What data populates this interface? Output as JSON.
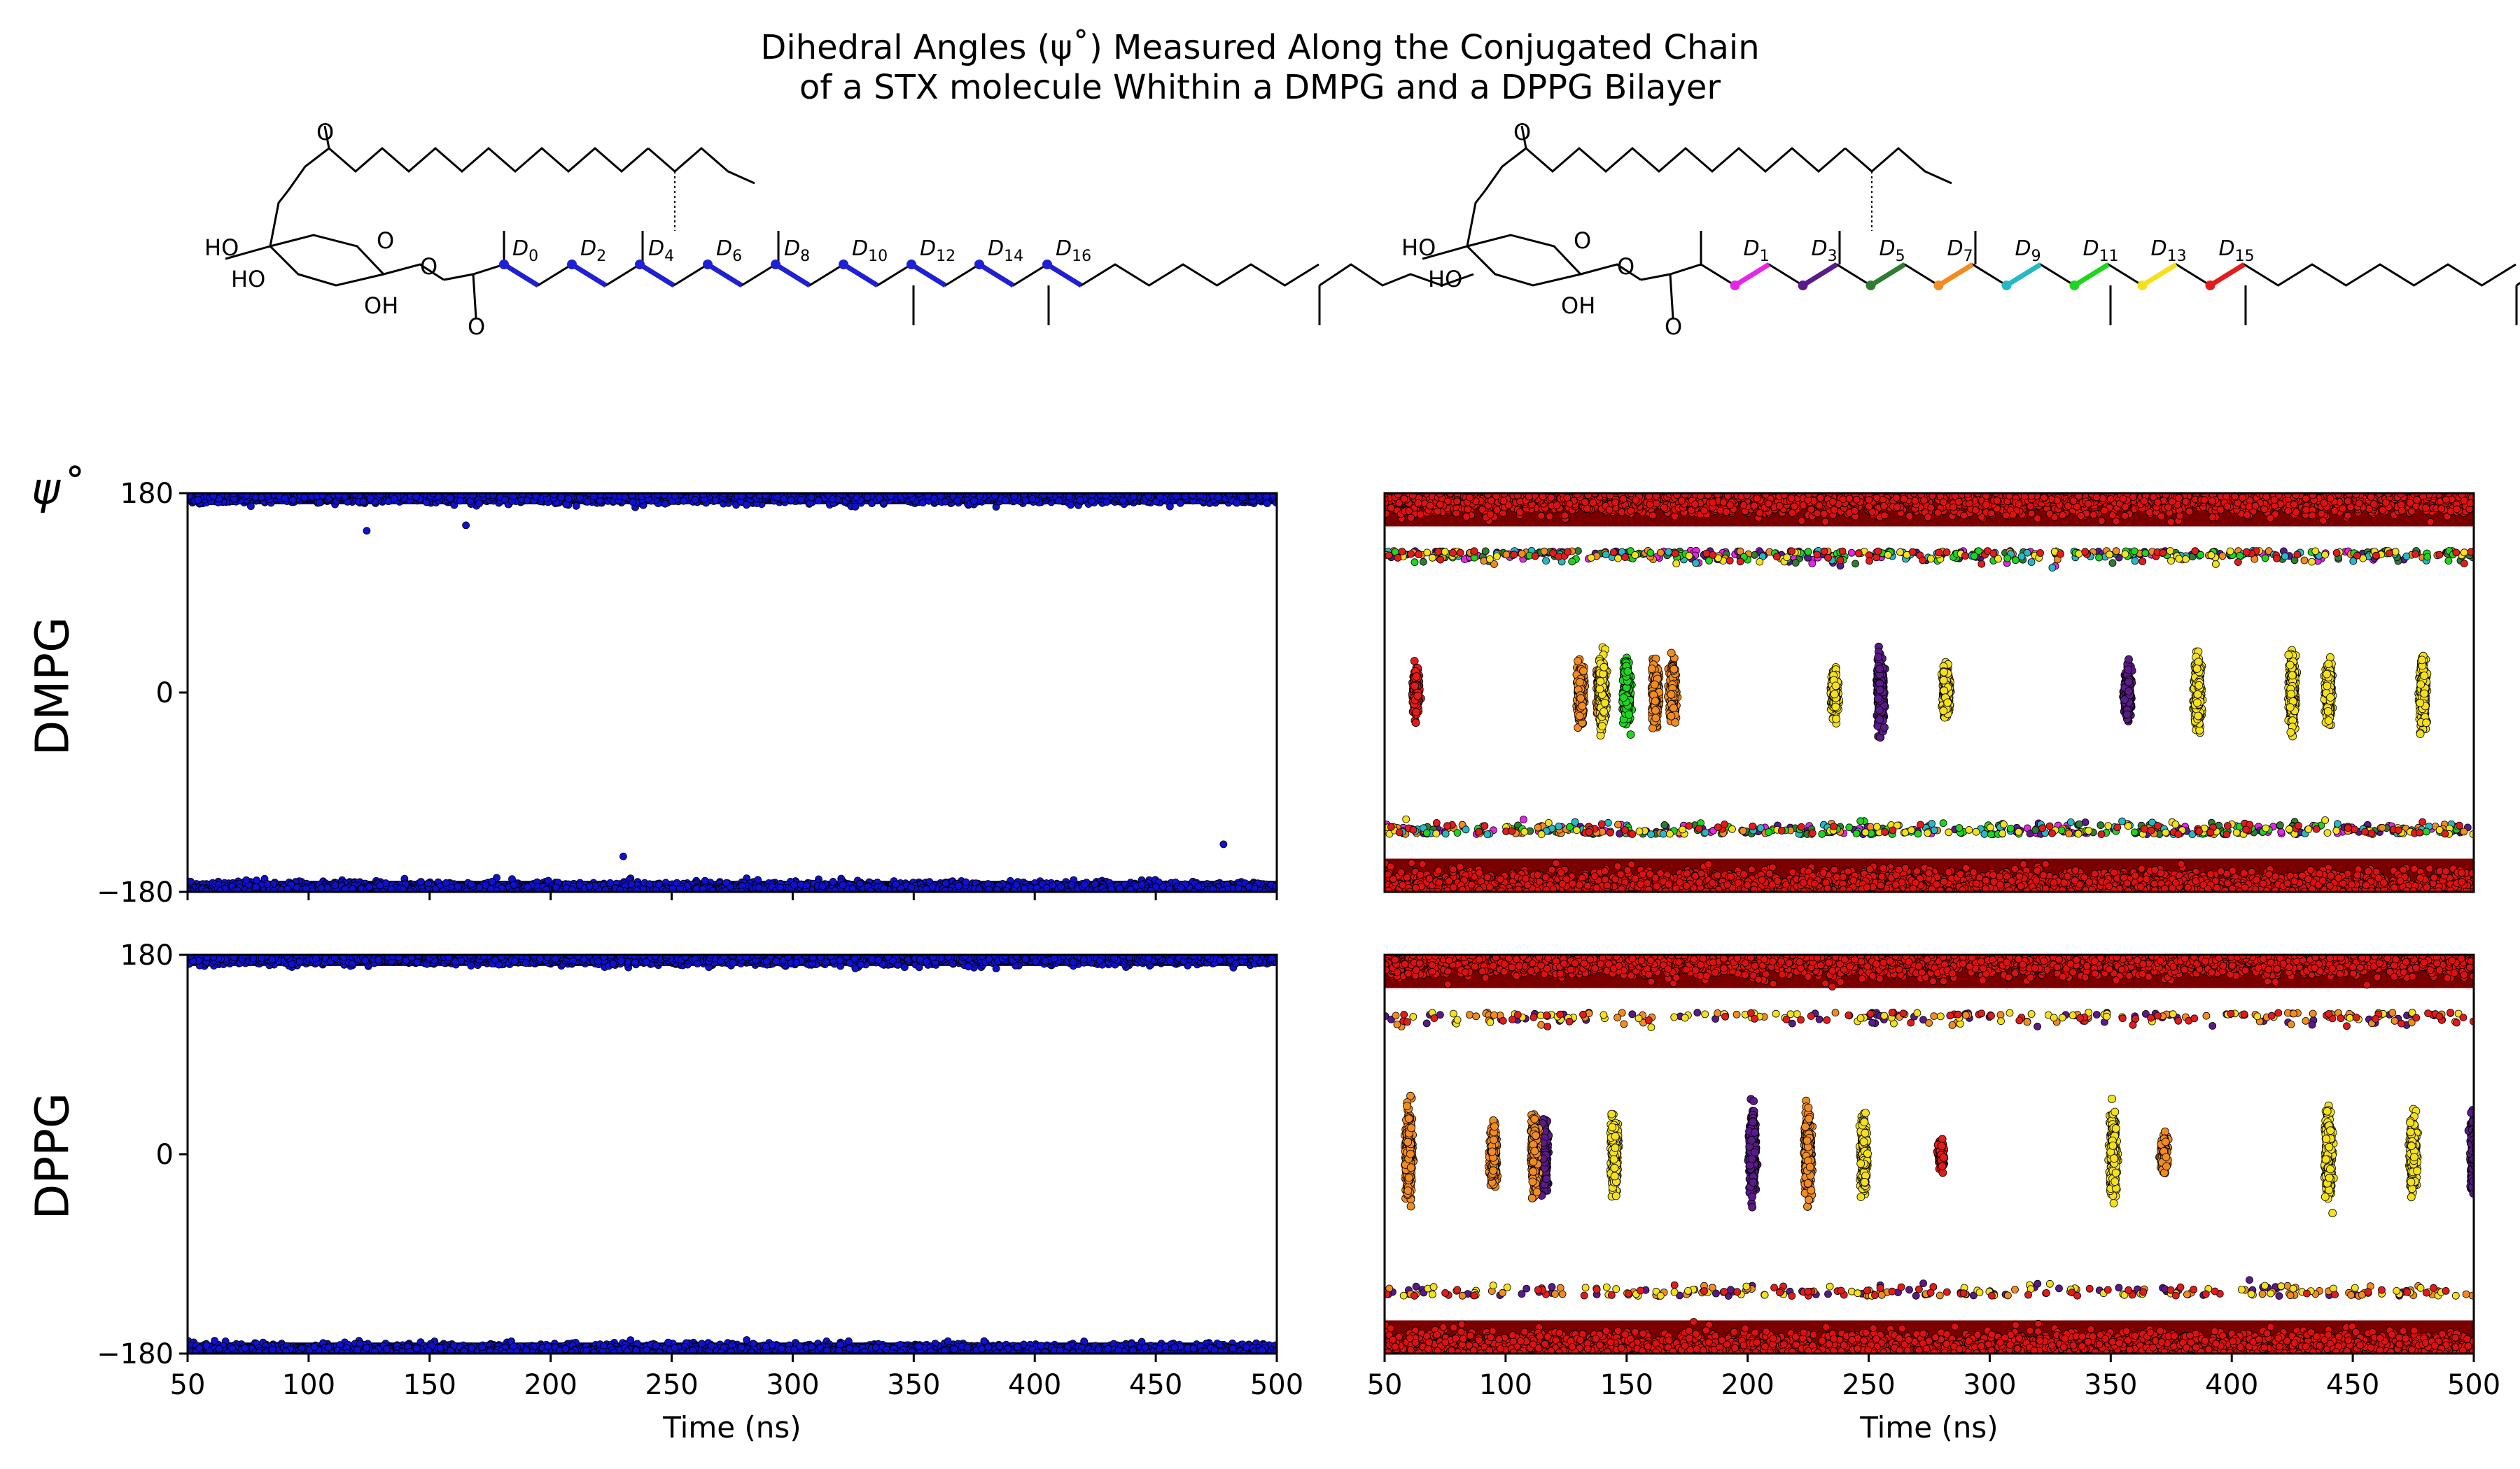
{
  "title": {
    "line1": "Dihedral Angles (ψ˚) Measured Along the Conjugated Chain",
    "line2": "of a STX molecule Whithin a DMPG and a DPPG Bilayer"
  },
  "y_axis_symbol": "ψ˚",
  "row_labels": [
    "DMPG",
    "DPPG"
  ],
  "structures": {
    "left": {
      "dihedral_labels": [
        "D0",
        "D2",
        "D4",
        "D6",
        "D8",
        "D10",
        "D12",
        "D14",
        "D16"
      ],
      "bond_color": "#1f1fd6",
      "atom_labels": [
        "HO",
        "HO",
        "OH",
        "O",
        "O",
        "O",
        "O"
      ]
    },
    "right": {
      "dihedral_labels": [
        "D1",
        "D3",
        "D5",
        "D7",
        "D9",
        "D11",
        "D13",
        "D15"
      ],
      "dihedral_colors": [
        "#e626e6",
        "#5a1a8a",
        "#2e7d32",
        "#f28c1e",
        "#25b9c4",
        "#1ed61e",
        "#f5e11b",
        "#e51b1b"
      ],
      "atom_labels": [
        "HO",
        "HO",
        "OH",
        "O",
        "O",
        "O",
        "O"
      ]
    }
  },
  "chart_data": [
    {
      "id": "DMPG-even",
      "type": "scatter",
      "row": "DMPG",
      "xlabel": "",
      "ylabel": "ψ˚",
      "xlim": [
        50,
        500
      ],
      "ylim": [
        -180,
        180
      ],
      "xticks": [
        "50",
        "100",
        "150",
        "200",
        "250",
        "300",
        "350",
        "400",
        "450",
        "500"
      ],
      "yticks": [
        "180",
        "0",
        "−180"
      ],
      "series": [
        {
          "band_top": [
            160,
            180
          ],
          "band_bottom": [
            -180,
            -160
          ],
          "color": "#1010d0",
          "outliers": [
            [
              124,
              146
            ],
            [
              165,
              151
            ],
            [
              230,
              -148
            ],
            [
              478,
              -137
            ]
          ]
        }
      ],
      "grid": false
    },
    {
      "id": "DMPG-odd",
      "type": "scatter",
      "row": "DMPG",
      "xlabel": "",
      "xlim": [
        50,
        500
      ],
      "ylim": [
        -180,
        180
      ],
      "yticks_visible": false,
      "series": [
        {
          "name": "D1",
          "color": "#e626e6"
        },
        {
          "name": "D3",
          "color": "#5a1a8a",
          "clusters": [
            [
              255,
              0,
              30
            ],
            [
              357,
              0,
              22
            ]
          ]
        },
        {
          "name": "D5",
          "color": "#2e7d32"
        },
        {
          "name": "D7",
          "color": "#f28c1e",
          "clusters": [
            [
              131,
              0,
              25
            ],
            [
              162,
              0,
              25
            ],
            [
              169,
              0,
              25
            ],
            [
              139,
              0,
              20
            ],
            [
              282,
              0,
              20
            ]
          ]
        },
        {
          "name": "D9",
          "color": "#25b9c4"
        },
        {
          "name": "D11",
          "color": "#1ed61e",
          "clusters": [
            [
              150,
              0,
              25
            ]
          ]
        },
        {
          "name": "D13",
          "color": "#f5e11b",
          "clusters": [
            [
              140,
              0,
              30
            ],
            [
              236,
              0,
              20
            ],
            [
              282,
              0,
              20
            ],
            [
              386,
              0,
              30
            ],
            [
              425,
              0,
              30
            ],
            [
              440,
              0,
              25
            ],
            [
              479,
              0,
              30
            ]
          ]
        },
        {
          "name": "D15",
          "color": "#e51b1b",
          "clusters": [
            [
              63,
              0,
              20
            ]
          ]
        }
      ],
      "bands": {
        "top": [
          120,
          180
        ],
        "bottom": [
          -180,
          -120
        ],
        "color": "#e01010"
      },
      "grid": false
    },
    {
      "id": "DPPG-even",
      "type": "scatter",
      "row": "DPPG",
      "xlabel": "Time (ns)",
      "ylabel": "ψ˚",
      "xlim": [
        50,
        500
      ],
      "ylim": [
        -180,
        180
      ],
      "xticks": [
        "50",
        "100",
        "150",
        "200",
        "250",
        "300",
        "350",
        "400",
        "450",
        "500"
      ],
      "yticks": [
        "180",
        "0",
        "−180"
      ],
      "series": [
        {
          "band_top": [
            160,
            180
          ],
          "band_bottom": [
            -180,
            -160
          ],
          "color": "#1010d0"
        }
      ],
      "grid": false
    },
    {
      "id": "DPPG-odd",
      "type": "scatter",
      "row": "DPPG",
      "xlabel": "Time (ns)",
      "xlim": [
        50,
        500
      ],
      "ylim": [
        -180,
        180
      ],
      "xticks": [
        "50",
        "100",
        "150",
        "200",
        "250",
        "300",
        "350",
        "400",
        "450",
        "500"
      ],
      "yticks_visible": false,
      "series": [
        {
          "name": "D3",
          "color": "#5a1a8a",
          "clusters": [
            [
              116,
              0,
              30
            ],
            [
              202,
              0,
              35
            ],
            [
              500,
              0,
              30
            ]
          ]
        },
        {
          "name": "D7",
          "color": "#f28c1e",
          "clusters": [
            [
              60,
              0,
              35
            ],
            [
              95,
              0,
              25
            ],
            [
              112,
              0,
              30
            ],
            [
              225,
              0,
              35
            ],
            [
              372,
              0,
              15
            ]
          ]
        },
        {
          "name": "D13",
          "color": "#f5e11b",
          "clusters": [
            [
              145,
              0,
              30
            ],
            [
              248,
              0,
              30
            ],
            [
              351,
              0,
              35
            ],
            [
              440,
              0,
              35
            ],
            [
              475,
              0,
              30
            ]
          ]
        },
        {
          "name": "D15",
          "color": "#e51b1b",
          "clusters": [
            [
              280,
              0,
              12
            ]
          ]
        }
      ],
      "bands": {
        "top": [
          120,
          180
        ],
        "bottom": [
          -180,
          -120
        ],
        "color": "#e01010"
      },
      "grid": false
    }
  ]
}
